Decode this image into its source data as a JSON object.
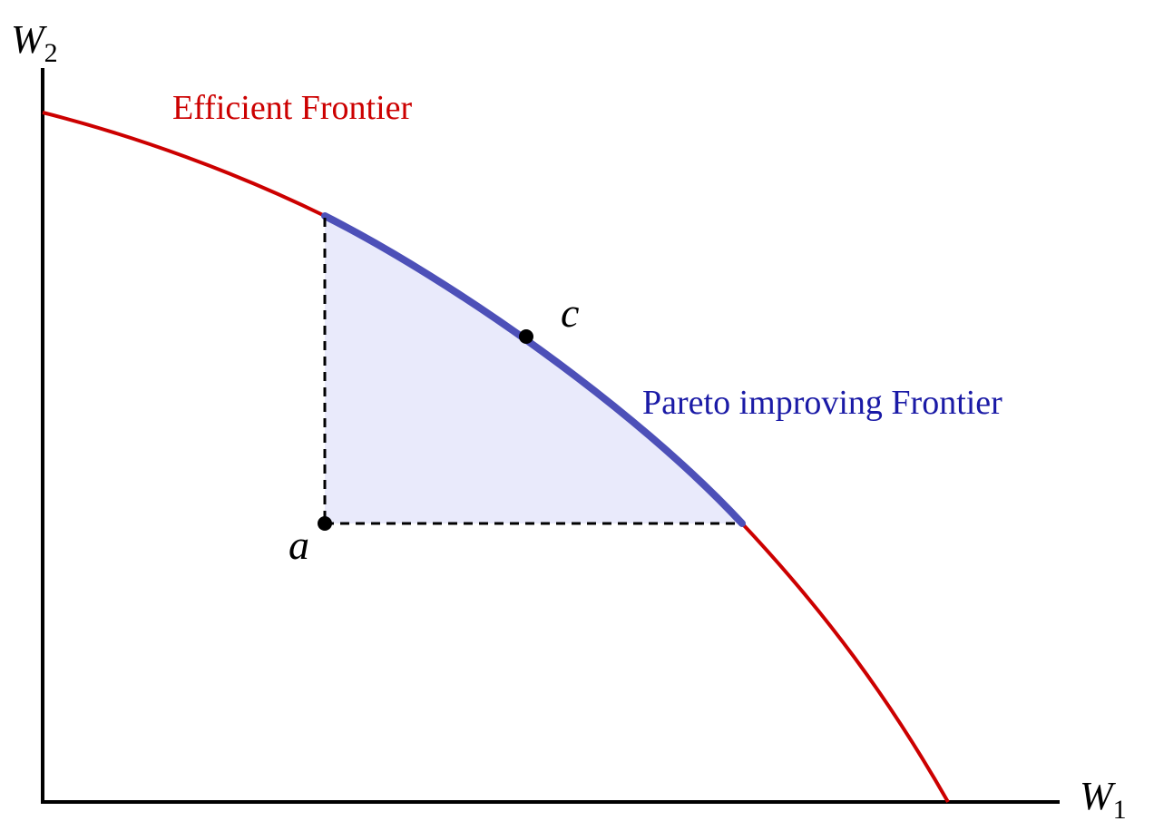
{
  "axes": {
    "y_label": {
      "base": "W",
      "sub": "2"
    },
    "x_label": {
      "base": "W",
      "sub": "1"
    }
  },
  "curves": {
    "efficient": "Efficient Frontier",
    "pareto": "Pareto improving Frontier"
  },
  "points": {
    "a": "a",
    "c": "c"
  }
}
